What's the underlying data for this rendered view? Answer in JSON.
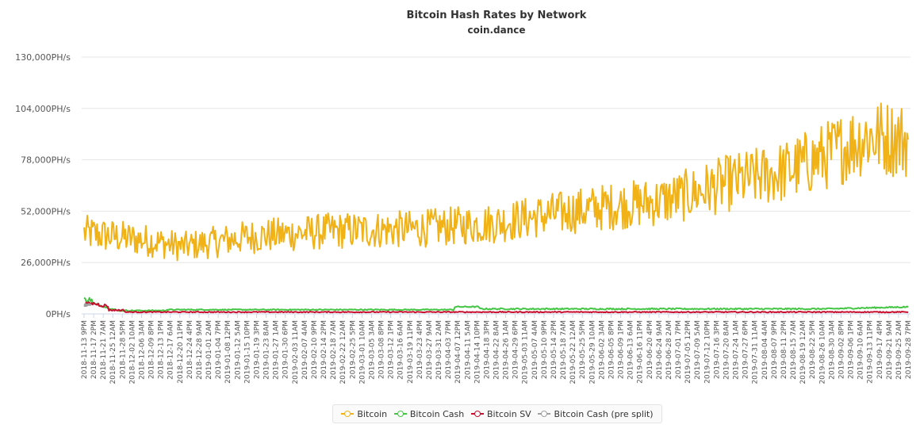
{
  "chart_data": {
    "type": "line",
    "title": "Bitcoin Hash Rates by Network",
    "subtitle": "coin.dance",
    "y_unit": "PH/s",
    "ylim": [
      0,
      130000
    ],
    "yticks": [
      "0PH/s",
      "26,000PH/s",
      "52,000PH/s",
      "78,000PH/s",
      "104,000PH/s",
      "130,000PH/s"
    ],
    "grid": true,
    "legend_position": "bottom",
    "x_tick_labels": [
      "2018-11-13 9PM",
      "2018-11-17 2PM",
      "2018-11-21 7AM",
      "2018-11-25 12AM",
      "2018-11-28 5PM",
      "2018-12-02 10AM",
      "2018-12-06 3AM",
      "2018-12-09 8PM",
      "2018-12-13 1PM",
      "2018-12-17 6AM",
      "2018-12-20 11PM",
      "2018-12-24 4PM",
      "2018-12-28 9AM",
      "2019-01-01 2AM",
      "2019-01-04 7PM",
      "2019-01-08 12PM",
      "2019-01-12 5AM",
      "2019-01-15 10PM",
      "2019-01-19 3PM",
      "2019-01-23 8AM",
      "2019-01-27 1AM",
      "2019-01-30 6PM",
      "2019-02-03 11AM",
      "2019-02-07 4AM",
      "2019-02-10 9PM",
      "2019-02-14 2PM",
      "2019-02-18 7AM",
      "2019-02-22 12AM",
      "2019-02-25 5PM",
      "2019-03-01 10AM",
      "2019-03-05 3AM",
      "2019-03-08 8PM",
      "2019-03-12 1PM",
      "2019-03-16 6AM",
      "2019-03-19 11PM",
      "2019-03-23 4PM",
      "2019-03-27 9AM",
      "2019-03-31 2AM",
      "2019-04-03 7PM",
      "2019-04-07 12PM",
      "2019-04-11 5AM",
      "2019-04-14 10PM",
      "2019-04-18 3PM",
      "2019-04-22 8AM",
      "2019-04-26 1AM",
      "2019-04-29 6PM",
      "2019-05-03 11AM",
      "2019-05-07 4AM",
      "2019-05-10 9PM",
      "2019-05-14 2PM",
      "2019-05-18 7AM",
      "2019-05-22 12AM",
      "2019-05-25 5PM",
      "2019-05-29 10AM",
      "2019-06-02 3AM",
      "2019-06-05 8PM",
      "2019-06-09 1PM",
      "2019-06-13 6AM",
      "2019-06-16 11PM",
      "2019-06-20 4PM",
      "2019-06-24 9AM",
      "2019-06-28 2AM",
      "2019-07-01 7PM",
      "2019-07-05 12PM",
      "2019-07-09 5AM",
      "2019-07-12 10PM",
      "2019-07-16 3PM",
      "2019-07-20 8AM",
      "2019-07-24 1AM",
      "2019-07-27 6PM",
      "2019-07-31 11AM",
      "2019-08-04 4AM",
      "2019-08-07 9PM",
      "2019-08-11 2PM",
      "2019-08-15 7AM",
      "2019-08-19 12AM",
      "2019-08-22 5PM",
      "2019-08-26 10AM",
      "2019-08-30 3AM",
      "2019-09-02 8PM",
      "2019-09-06 1PM",
      "2019-09-10 6AM",
      "2019-09-13 11PM",
      "2019-09-17 4PM",
      "2019-09-21 9AM",
      "2019-09-25 2AM",
      "2019-09-28 7PM"
    ],
    "series": [
      {
        "name": "Bitcoin",
        "color": "#f0b217",
        "trend": [
          [
            0,
            41000
          ],
          [
            0.08,
            37000
          ],
          [
            0.12,
            34000
          ],
          [
            0.2,
            39000
          ],
          [
            0.3,
            42000
          ],
          [
            0.4,
            43000
          ],
          [
            0.5,
            46000
          ],
          [
            0.56,
            50000
          ],
          [
            0.63,
            54000
          ],
          [
            0.7,
            57000
          ],
          [
            0.73,
            60000
          ],
          [
            0.78,
            66000
          ],
          [
            0.85,
            72000
          ],
          [
            0.9,
            80000
          ],
          [
            0.95,
            90000
          ],
          [
            1.0,
            88000
          ]
        ],
        "range_min": 24000,
        "range_max": 121000
      },
      {
        "name": "Bitcoin Cash",
        "color": "#44c544",
        "level": 2500,
        "start_peak": 8500
      },
      {
        "name": "Bitcoin SV",
        "color": "#c8102e",
        "level": 800,
        "start_peak": 6000
      },
      {
        "name": "Bitcoin Cash (pre split)",
        "color": "#a0a0a0",
        "level": 4500,
        "end_fraction": 0.008
      }
    ]
  }
}
